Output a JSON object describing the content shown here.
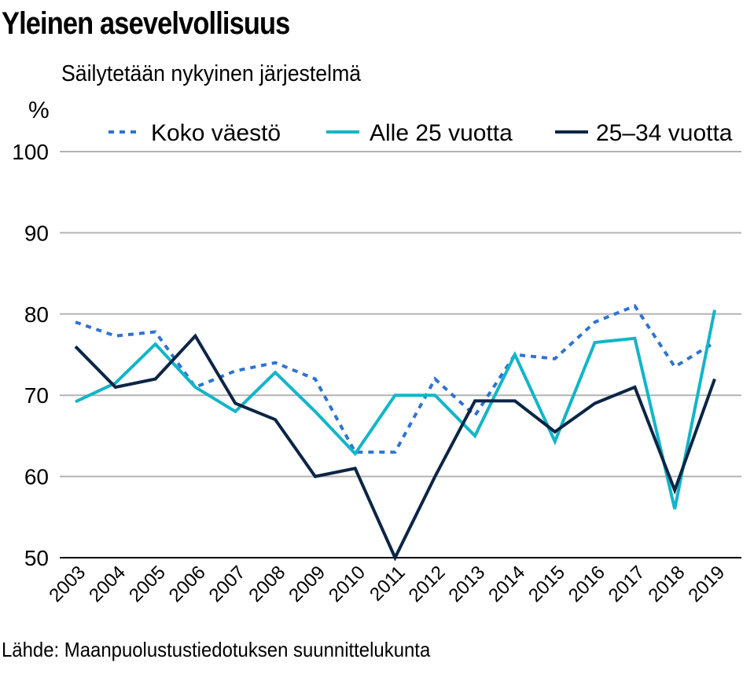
{
  "chart_data": {
    "type": "line",
    "title": "Yleinen asevelvollisuus",
    "subtitle": "Säilytetään nykyinen järjestelmä",
    "ylabel": "%",
    "xlabel": "",
    "source": "Lähde: Maanpuolustustiedotuksen suunnittelukunta",
    "ylim": [
      50,
      100
    ],
    "yticks": [
      50,
      60,
      70,
      80,
      90,
      100
    ],
    "categories": [
      "2003",
      "2004",
      "2005",
      "2006",
      "2007",
      "2008",
      "2009",
      "2010",
      "2011",
      "2012",
      "2013",
      "2014",
      "2015",
      "2016",
      "2017",
      "2018",
      "2019"
    ],
    "legend_position": "top",
    "series": [
      {
        "name": "Koko väestö",
        "color": "#2f73d0",
        "style": "dashed",
        "values": [
          79,
          77.3,
          77.8,
          71,
          73,
          74,
          72,
          63,
          63,
          72,
          67.5,
          75,
          74.5,
          79,
          81,
          73.5,
          76.5
        ]
      },
      {
        "name": "Alle 25 vuotta",
        "color": "#12b5c8",
        "style": "solid",
        "values": [
          69.2,
          71.5,
          76.3,
          71,
          68,
          72.8,
          68,
          62.8,
          70,
          70,
          65,
          75,
          64.3,
          76.5,
          77,
          56,
          80.5
        ]
      },
      {
        "name": "25–34 vuotta",
        "color": "#0b2545",
        "style": "solid",
        "values": [
          76,
          71,
          72,
          77.3,
          69,
          67,
          60,
          61,
          50,
          60,
          69.3,
          69.3,
          65.5,
          69,
          71,
          58.3,
          72
        ]
      }
    ]
  }
}
